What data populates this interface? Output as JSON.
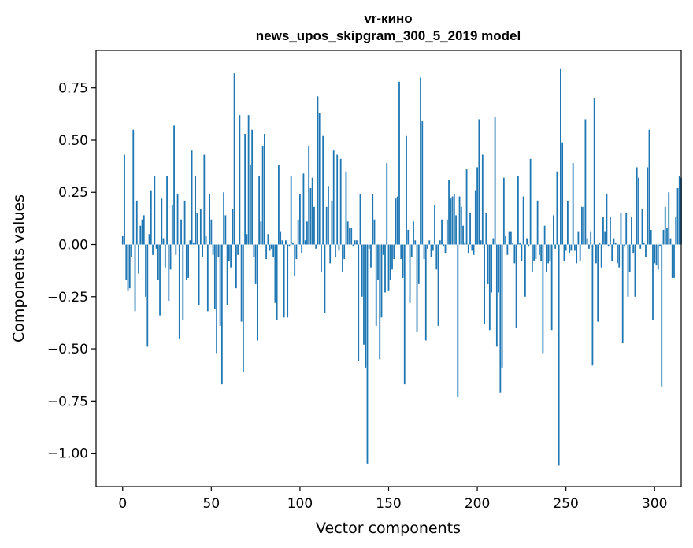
{
  "chart_data": {
    "type": "bar",
    "title_line1": "vr-кино",
    "title_line2": "news_upos_skipgram_300_5_2019 model",
    "xlabel": "Vector components",
    "ylabel": "Components values",
    "xlim": [
      -15,
      315
    ],
    "ylim": [
      -1.16,
      0.93
    ],
    "xticks": [
      0,
      50,
      100,
      150,
      200,
      250,
      300
    ],
    "xtick_labels": [
      "0",
      "50",
      "100",
      "150",
      "200",
      "250",
      "300"
    ],
    "yticks": [
      -1.0,
      -0.75,
      -0.5,
      -0.25,
      0.0,
      0.25,
      0.5,
      0.75
    ],
    "ytick_labels": [
      "−1.00",
      "−0.75",
      "−0.50",
      "−0.25",
      "0.00",
      "0.25",
      "0.50",
      "0.75"
    ],
    "bar_color": "#1f77b4",
    "values": [
      0.04,
      0.43,
      -0.17,
      -0.22,
      -0.21,
      -0.06,
      0.55,
      -0.32,
      0.21,
      -0.14,
      0.09,
      0.12,
      0.14,
      -0.25,
      -0.49,
      0.05,
      0.26,
      -0.05,
      0.33,
      -0.02,
      -0.17,
      -0.34,
      0.22,
      0.03,
      -0.11,
      0.33,
      -0.27,
      -0.12,
      0.19,
      0.57,
      -0.05,
      0.24,
      -0.45,
      0.12,
      -0.36,
      0.21,
      -0.17,
      -0.16,
      0.02,
      0.45,
      0.01,
      0.33,
      0.15,
      -0.29,
      0.17,
      -0.06,
      0.43,
      0.04,
      -0.32,
      0.24,
      0.12,
      -0.05,
      -0.31,
      -0.52,
      -0.06,
      -0.39,
      -0.67,
      0.25,
      0.14,
      -0.29,
      -0.08,
      -0.11,
      0.17,
      0.82,
      -0.21,
      -0.05,
      0.62,
      -0.37,
      -0.61,
      0.53,
      0.05,
      0.62,
      0.38,
      0.55,
      -0.06,
      -0.19,
      -0.46,
      0.33,
      0.11,
      0.47,
      0.53,
      -0.07,
      0.05,
      -0.03,
      -0.02,
      -0.06,
      -0.28,
      -0.36,
      0.38,
      0.06,
      0.02,
      -0.35,
      0.02,
      -0.35,
      -0.01,
      0.33,
      0.01,
      -0.15,
      -0.07,
      0.12,
      0.24,
      -0.04,
      0.34,
      0.02,
      0.11,
      0.47,
      0.27,
      0.32,
      0.18,
      -0.02,
      0.71,
      0.63,
      -0.13,
      0.52,
      -0.33,
      0.18,
      0.28,
      -0.09,
      0.21,
      0.45,
      -0.06,
      0.43,
      -0.03,
      0.41,
      -0.13,
      -0.07,
      0.35,
      0.11,
      0.08,
      0.08,
      -0.01,
      0.02,
      0.02,
      -0.56,
      0.24,
      -0.25,
      -0.48,
      -0.59,
      -1.05,
      -0.02,
      -0.11,
      0.24,
      0.12,
      -0.39,
      -0.17,
      -0.55,
      -0.35,
      -0.05,
      -0.23,
      0.39,
      -0.22,
      -0.17,
      -0.12,
      -0.07,
      0.22,
      0.23,
      0.78,
      -0.07,
      -0.16,
      -0.67,
      0.52,
      0.07,
      -0.28,
      -0.06,
      0.11,
      0.02,
      -0.42,
      -0.19,
      0.8,
      0.59,
      -0.07,
      -0.46,
      -0.02,
      0.02,
      -0.06,
      -0.03,
      0.19,
      -0.12,
      -0.39,
      0.02,
      0.12,
      -0.01,
      -0.04,
      0.12,
      0.31,
      0.22,
      0.23,
      0.24,
      0.14,
      -0.73,
      0.23,
      0.18,
      0.09,
      0.01,
      0.36,
      -0.04,
      0.15,
      -0.03,
      -0.05,
      0.26,
      0.37,
      0.6,
      0.02,
      0.43,
      -0.38,
      0.15,
      -0.19,
      -0.41,
      -0.23,
      0.03,
      0.61,
      -0.49,
      -0.23,
      -0.71,
      -0.59,
      0.32,
      0.04,
      -0.05,
      0.06,
      0.06,
      0.01,
      -0.09,
      -0.4,
      0.33,
      0.01,
      -0.08,
      0.23,
      -0.25,
      0.03,
      -0.01,
      0.41,
      -0.13,
      -0.08,
      -0.07,
      0.21,
      -0.05,
      -0.08,
      -0.52,
      0.09,
      -0.13,
      -0.09,
      -0.08,
      -0.41,
      0.14,
      -0.02,
      0.35,
      -1.06,
      0.84,
      0.49,
      -0.08,
      -0.03,
      0.21,
      -0.04,
      -0.03,
      0.39,
      -0.03,
      -0.09,
      0.06,
      -0.08,
      0.18,
      0.18,
      0.6,
      0.03,
      -0.02,
      0.06,
      -0.58,
      0.7,
      -0.09,
      -0.37,
      0.01,
      -0.11,
      0.13,
      0.06,
      0.24,
      -0.01,
      0.13,
      -0.08,
      0.03,
      0.01,
      -0.09,
      -0.11,
      0.15,
      -0.47,
      -0.01,
      0.15,
      -0.25,
      -0.13,
      0.13,
      -0.04,
      -0.25,
      0.37,
      0.32,
      -0.02,
      0.17,
      0.01,
      -0.06,
      0.37,
      0.55,
      0.07,
      -0.36,
      -0.09,
      -0.1,
      -0.12,
      -0.01,
      -0.68,
      0.07,
      0.18,
      0.08,
      0.25,
      0.03,
      -0.16,
      -0.16,
      0.13,
      0.27,
      0.33,
      0.32
    ]
  }
}
